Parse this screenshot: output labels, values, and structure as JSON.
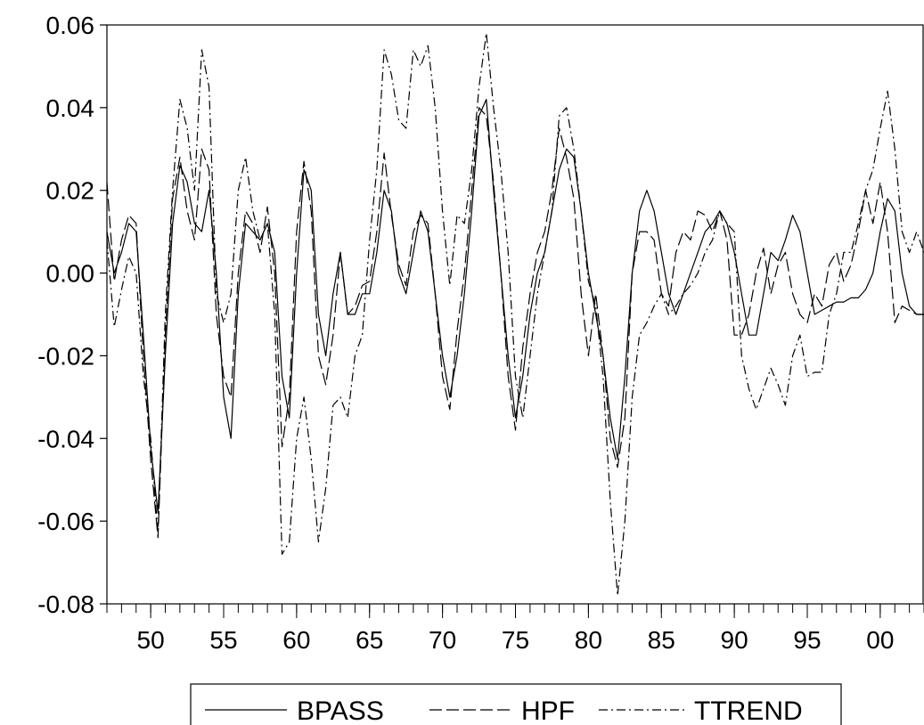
{
  "chart_data": {
    "type": "line",
    "title": "",
    "xlabel": "",
    "ylabel": "",
    "x_range": [
      1947,
      2003
    ],
    "ylim": [
      -0.08,
      0.06
    ],
    "y_ticks": [
      0.06,
      0.04,
      0.02,
      0.0,
      -0.02,
      -0.04,
      -0.06,
      -0.08
    ],
    "y_tick_labels": [
      "0.06",
      "0.04",
      "0.02",
      "0.00",
      "-0.02",
      "-0.04",
      "-0.06",
      "-0.08"
    ],
    "x_ticks": [
      1950,
      1955,
      1960,
      1965,
      1970,
      1975,
      1980,
      1985,
      1990,
      1995,
      2000
    ],
    "x_tick_labels": [
      "50",
      "55",
      "60",
      "65",
      "70",
      "75",
      "80",
      "85",
      "90",
      "95",
      "00"
    ],
    "grid": false,
    "legend_position": "bottom",
    "series": [
      {
        "name": "BPASS",
        "style": "solid",
        "x": [
          1947.0,
          1947.5,
          1948.0,
          1948.5,
          1949.0,
          1949.5,
          1950.0,
          1950.5,
          1951.0,
          1951.5,
          1952.0,
          1952.5,
          1953.0,
          1953.5,
          1954.0,
          1954.5,
          1955.0,
          1955.5,
          1956.0,
          1956.5,
          1957.0,
          1957.5,
          1958.0,
          1958.5,
          1959.0,
          1959.5,
          1960.0,
          1960.5,
          1961.0,
          1961.5,
          1962.0,
          1962.5,
          1963.0,
          1963.5,
          1964.0,
          1964.5,
          1965.0,
          1965.5,
          1966.0,
          1966.5,
          1967.0,
          1967.5,
          1968.0,
          1968.5,
          1969.0,
          1969.5,
          1970.0,
          1970.5,
          1971.0,
          1971.5,
          1972.0,
          1972.5,
          1973.0,
          1973.5,
          1974.0,
          1974.5,
          1975.0,
          1975.5,
          1976.0,
          1976.5,
          1977.0,
          1977.5,
          1978.0,
          1978.5,
          1979.0,
          1979.5,
          1980.0,
          1980.5,
          1981.0,
          1981.5,
          1982.0,
          1982.5,
          1983.0,
          1983.5,
          1984.0,
          1984.5,
          1985.0,
          1985.5,
          1986.0,
          1986.5,
          1987.0,
          1987.5,
          1988.0,
          1988.5,
          1989.0,
          1989.5,
          1990.0,
          1990.5,
          1991.0,
          1991.5,
          1992.0,
          1992.5,
          1993.0,
          1993.5,
          1994.0,
          1994.5,
          1995.0,
          1995.5,
          1996.0,
          1996.5,
          1997.0,
          1997.5,
          1998.0,
          1998.5,
          1999.0,
          1999.5,
          2000.0,
          2000.5,
          2001.0,
          2001.5,
          2002.0,
          2002.5,
          2003.0
        ],
        "values": [
          0.01,
          0.0,
          0.005,
          0.012,
          0.01,
          -0.015,
          -0.042,
          -0.058,
          -0.02,
          0.012,
          0.026,
          0.022,
          0.012,
          0.01,
          0.02,
          0.0,
          -0.03,
          -0.04,
          -0.005,
          0.012,
          0.01,
          0.008,
          0.012,
          0.005,
          -0.025,
          -0.035,
          0.0,
          0.025,
          0.02,
          -0.01,
          -0.02,
          -0.005,
          0.005,
          -0.01,
          -0.01,
          -0.005,
          -0.005,
          0.005,
          0.02,
          0.015,
          0.0,
          -0.005,
          0.005,
          0.015,
          0.01,
          -0.005,
          -0.02,
          -0.03,
          -0.02,
          -0.005,
          0.015,
          0.038,
          0.042,
          0.02,
          0.0,
          -0.02,
          -0.035,
          -0.025,
          -0.01,
          0.0,
          0.005,
          0.015,
          0.025,
          0.03,
          0.028,
          0.015,
          0.0,
          -0.01,
          -0.02,
          -0.035,
          -0.045,
          -0.025,
          0.0,
          0.015,
          0.02,
          0.015,
          0.005,
          -0.005,
          -0.01,
          -0.005,
          0.0,
          0.005,
          0.01,
          0.012,
          0.015,
          0.012,
          0.005,
          -0.005,
          -0.015,
          -0.015,
          -0.005,
          0.005,
          0.003,
          0.008,
          0.014,
          0.01,
          0.0,
          -0.01,
          -0.009,
          -0.008,
          -0.007,
          -0.007,
          -0.006,
          -0.006,
          -0.004,
          0.0,
          0.01,
          0.018,
          0.015,
          0.0,
          -0.008,
          -0.01,
          -0.01
        ]
      },
      {
        "name": "HPF",
        "style": "long-dash",
        "x": [
          1947.0,
          1947.5,
          1948.0,
          1948.5,
          1949.0,
          1949.5,
          1950.0,
          1950.5,
          1951.0,
          1951.5,
          1952.0,
          1952.5,
          1953.0,
          1953.5,
          1954.0,
          1954.5,
          1955.0,
          1955.5,
          1956.0,
          1956.5,
          1957.0,
          1957.5,
          1958.0,
          1958.5,
          1959.0,
          1959.5,
          1960.0,
          1960.5,
          1961.0,
          1961.5,
          1962.0,
          1962.5,
          1963.0,
          1963.5,
          1964.0,
          1964.5,
          1965.0,
          1965.5,
          1966.0,
          1966.5,
          1967.0,
          1967.5,
          1968.0,
          1968.5,
          1969.0,
          1969.5,
          1970.0,
          1970.5,
          1971.0,
          1971.5,
          1972.0,
          1972.5,
          1973.0,
          1973.5,
          1974.0,
          1974.5,
          1975.0,
          1975.5,
          1976.0,
          1976.5,
          1977.0,
          1977.5,
          1978.0,
          1978.5,
          1979.0,
          1979.5,
          1980.0,
          1980.5,
          1981.0,
          1981.5,
          1982.0,
          1982.5,
          1983.0,
          1983.5,
          1984.0,
          1984.5,
          1985.0,
          1985.5,
          1986.0,
          1986.5,
          1987.0,
          1987.5,
          1988.0,
          1988.5,
          1989.0,
          1989.5,
          1990.0,
          1990.5,
          1991.0,
          1991.5,
          1992.0,
          1992.5,
          1993.0,
          1993.5,
          1994.0,
          1994.5,
          1995.0,
          1995.5,
          1996.0,
          1996.5,
          1997.0,
          1997.5,
          1998.0,
          1998.5,
          1999.0,
          1999.5,
          2000.0,
          2000.5,
          2001.0,
          2001.5,
          2002.0,
          2002.5,
          2003.0
        ],
        "values": [
          0.022,
          -0.002,
          0.008,
          0.014,
          0.012,
          -0.02,
          -0.045,
          -0.064,
          -0.015,
          0.018,
          0.028,
          0.015,
          0.008,
          0.03,
          0.025,
          -0.01,
          -0.025,
          -0.03,
          0.0,
          0.015,
          0.012,
          0.005,
          0.016,
          0.0,
          -0.042,
          -0.03,
          0.01,
          0.027,
          0.015,
          -0.02,
          -0.027,
          -0.015,
          0.005,
          -0.01,
          -0.008,
          -0.003,
          -0.002,
          0.01,
          0.029,
          0.014,
          0.002,
          -0.003,
          0.01,
          0.014,
          0.012,
          -0.005,
          -0.025,
          -0.033,
          -0.014,
          0.0,
          0.02,
          0.04,
          0.038,
          0.022,
          0.0,
          -0.025,
          -0.038,
          -0.018,
          -0.005,
          0.005,
          0.01,
          0.02,
          0.035,
          0.028,
          0.018,
          -0.005,
          -0.02,
          -0.005,
          -0.02,
          -0.04,
          -0.047,
          -0.035,
          0.0,
          0.01,
          0.01,
          0.008,
          -0.005,
          -0.008,
          0.005,
          0.01,
          0.008,
          0.015,
          0.014,
          0.01,
          0.015,
          0.008,
          -0.015,
          -0.015,
          -0.01,
          0.0,
          0.006,
          -0.005,
          0.002,
          0.005,
          -0.005,
          -0.01,
          -0.012,
          -0.005,
          -0.008,
          0.002,
          0.005,
          -0.002,
          0.002,
          0.01,
          0.02,
          0.012,
          0.022,
          0.01,
          -0.012,
          -0.008,
          -0.009,
          -0.01,
          -0.01
        ]
      },
      {
        "name": "TTREND",
        "style": "dash-dot",
        "x": [
          1947.0,
          1947.5,
          1948.0,
          1948.5,
          1949.0,
          1949.5,
          1950.0,
          1950.5,
          1951.0,
          1951.5,
          1952.0,
          1952.5,
          1953.0,
          1953.5,
          1954.0,
          1954.5,
          1955.0,
          1955.5,
          1956.0,
          1956.5,
          1957.0,
          1957.5,
          1958.0,
          1958.5,
          1959.0,
          1959.5,
          1960.0,
          1960.5,
          1961.0,
          1961.5,
          1962.0,
          1962.5,
          1963.0,
          1963.5,
          1964.0,
          1964.5,
          1965.0,
          1965.5,
          1966.0,
          1966.5,
          1967.0,
          1967.5,
          1968.0,
          1968.5,
          1969.0,
          1969.5,
          1970.0,
          1970.5,
          1971.0,
          1971.5,
          1972.0,
          1972.5,
          1973.0,
          1973.5,
          1974.0,
          1974.5,
          1975.0,
          1975.5,
          1976.0,
          1976.5,
          1977.0,
          1977.5,
          1978.0,
          1978.5,
          1979.0,
          1979.5,
          1980.0,
          1980.5,
          1981.0,
          1981.5,
          1982.0,
          1982.5,
          1983.0,
          1983.5,
          1984.0,
          1984.5,
          1985.0,
          1985.5,
          1986.0,
          1986.5,
          1987.0,
          1987.5,
          1988.0,
          1988.5,
          1989.0,
          1989.5,
          1990.0,
          1990.5,
          1991.0,
          1991.5,
          1992.0,
          1992.5,
          1993.0,
          1993.5,
          1994.0,
          1994.5,
          1995.0,
          1995.5,
          1996.0,
          1996.5,
          1997.0,
          1997.5,
          1998.0,
          1998.5,
          1999.0,
          1999.5,
          2000.0,
          2000.5,
          2001.0,
          2001.5,
          2002.0,
          2002.5,
          2003.0
        ],
        "values": [
          0.008,
          -0.013,
          -0.004,
          0.004,
          0.0,
          -0.025,
          -0.04,
          -0.063,
          -0.01,
          0.02,
          0.042,
          0.035,
          0.02,
          0.054,
          0.045,
          -0.005,
          -0.012,
          -0.005,
          0.02,
          0.028,
          0.015,
          0.008,
          0.012,
          -0.01,
          -0.068,
          -0.065,
          -0.04,
          -0.03,
          -0.045,
          -0.065,
          -0.052,
          -0.032,
          -0.03,
          -0.035,
          -0.02,
          -0.015,
          0.008,
          0.025,
          0.054,
          0.048,
          0.037,
          0.035,
          0.054,
          0.05,
          0.055,
          0.04,
          0.015,
          -0.003,
          0.014,
          0.012,
          0.025,
          0.045,
          0.058,
          0.04,
          0.025,
          0.005,
          -0.025,
          -0.035,
          -0.02,
          -0.005,
          0.005,
          0.015,
          0.038,
          0.04,
          0.03,
          0.015,
          -0.002,
          -0.008,
          -0.025,
          -0.055,
          -0.078,
          -0.06,
          -0.03,
          -0.015,
          -0.012,
          -0.008,
          -0.005,
          -0.01,
          -0.008,
          -0.005,
          -0.003,
          0.0,
          0.005,
          0.008,
          0.015,
          0.012,
          0.01,
          -0.02,
          -0.028,
          -0.033,
          -0.028,
          -0.023,
          -0.027,
          -0.032,
          -0.02,
          -0.015,
          -0.025,
          -0.024,
          -0.024,
          -0.01,
          -0.005,
          0.005,
          0.005,
          0.012,
          0.02,
          0.025,
          0.035,
          0.044,
          0.03,
          0.01,
          0.005,
          0.01,
          0.005
        ]
      }
    ]
  }
}
